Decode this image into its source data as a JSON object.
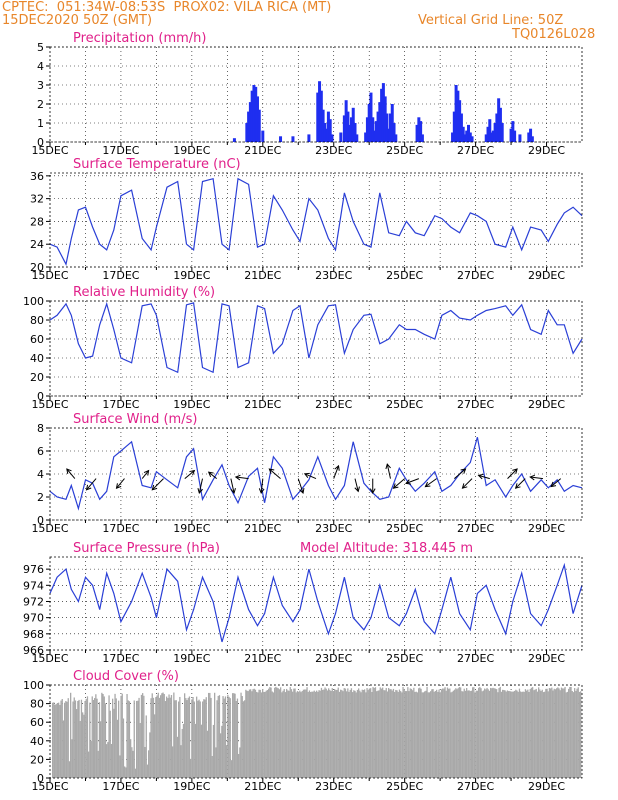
{
  "header": {
    "line1_left": "CPTEC:  051:34W-08:53S  PROX02: VILA RICA (MT)",
    "line2_left": "15DEC2020 50Z (GMT)",
    "line2_right": "Vertical Grid Line: 50Z",
    "line3_right": "TQ0126L028"
  },
  "colors": {
    "line": "#2a3fd6",
    "bar": "#1f2ef0",
    "cloud": "#a9a9a9",
    "title": "#e0208a",
    "header": "#e8862a"
  },
  "chart_data": [
    {
      "type": "bar",
      "title": "Precipitation (mm/h)",
      "xlabel": "",
      "ylabel": "",
      "ylim": [
        0,
        5
      ],
      "yticks": [
        0,
        1,
        2,
        3,
        4,
        5
      ],
      "x_tick_labels": [
        "15DEC",
        "17DEC",
        "19DEC",
        "21DEC",
        "23DEC",
        "25DEC",
        "27DEC",
        "29DEC"
      ],
      "x_range_days": [
        0,
        15
      ],
      "series": [
        {
          "day_offset": [
            5.2,
            5.55,
            5.6,
            5.65,
            5.7,
            5.75,
            5.8,
            5.85,
            5.9,
            6.0,
            6.5,
            6.85,
            7.3,
            7.55,
            7.6,
            7.65,
            7.7,
            7.75,
            7.8,
            7.85,
            7.9,
            7.95,
            8.2,
            8.3,
            8.35,
            8.4,
            8.45,
            8.5,
            8.55,
            8.6,
            8.65,
            8.9,
            8.95,
            9.0,
            9.05,
            9.1,
            9.15,
            9.2,
            9.25,
            9.3,
            9.35,
            9.4,
            9.45,
            9.5,
            9.55,
            9.6,
            9.65,
            9.7,
            9.75,
            10.35,
            10.4,
            10.45,
            10.5,
            11.35,
            11.4,
            11.45,
            11.5,
            11.55,
            11.6,
            11.65,
            11.7,
            11.75,
            11.8,
            11.85,
            11.9,
            12.3,
            12.35,
            12.4,
            12.45,
            12.5,
            12.55,
            12.6,
            12.65,
            12.7,
            12.75,
            13.0,
            13.05,
            13.1,
            13.25,
            13.5,
            13.55,
            13.6
          ],
          "values": [
            0.2,
            1.0,
            1.6,
            2.1,
            2.7,
            3.0,
            2.9,
            2.4,
            1.7,
            0.6,
            0.3,
            0.3,
            0.4,
            2.6,
            3.2,
            2.7,
            1.7,
            1.0,
            0.7,
            1.6,
            1.2,
            0.4,
            0.5,
            1.4,
            2.2,
            1.6,
            0.9,
            1.3,
            1.8,
            1.0,
            0.4,
            0.5,
            1.3,
            2.0,
            2.6,
            1.3,
            0.6,
            1.1,
            1.6,
            2.1,
            2.8,
            3.1,
            2.4,
            1.5,
            0.7,
            1.5,
            2.0,
            1.0,
            0.4,
            0.9,
            1.3,
            1.1,
            0.4,
            0.5,
            1.6,
            3.0,
            2.7,
            2.2,
            1.5,
            0.8,
            0.4,
            0.6,
            0.9,
            0.5,
            0.3,
            0.4,
            0.8,
            1.2,
            0.5,
            0.6,
            1.0,
            1.5,
            2.3,
            1.8,
            1.0,
            0.7,
            1.1,
            0.6,
            0.4,
            0.5,
            0.7,
            0.3
          ]
        }
      ]
    },
    {
      "type": "line",
      "title": "Surface Temperature (nC)",
      "ylim": [
        20,
        36.5
      ],
      "yticks": [
        20,
        24,
        28,
        32,
        36
      ],
      "x_tick_labels": [
        "15DEC",
        "17DEC",
        "19DEC",
        "21DEC",
        "23DEC",
        "25DEC",
        "27DEC",
        "29DEC"
      ],
      "x_range_days": [
        0,
        15
      ],
      "series": [
        {
          "x": [
            0,
            0.2,
            0.45,
            0.6,
            0.8,
            1.0,
            1.2,
            1.4,
            1.6,
            1.8,
            2.0,
            2.3,
            2.6,
            2.85,
            3.0,
            3.3,
            3.6,
            3.85,
            4.05,
            4.3,
            4.6,
            4.85,
            5.05,
            5.3,
            5.6,
            5.85,
            6.05,
            6.3,
            6.55,
            6.85,
            7.05,
            7.3,
            7.55,
            7.85,
            8.05,
            8.3,
            8.55,
            8.85,
            9.05,
            9.3,
            9.55,
            9.85,
            10.05,
            10.3,
            10.55,
            10.85,
            11.05,
            11.3,
            11.55,
            11.85,
            12.05,
            12.3,
            12.55,
            12.85,
            13.05,
            13.3,
            13.55,
            13.85,
            14.05,
            14.3,
            14.5,
            14.75,
            15.0
          ],
          "y": [
            24,
            23.5,
            20.5,
            25,
            30,
            30.5,
            27,
            24,
            23,
            26.5,
            32.5,
            33.5,
            25,
            23,
            27,
            34,
            35,
            24,
            23,
            35,
            35.5,
            24,
            23,
            35.5,
            34.5,
            23.5,
            24,
            32.5,
            30,
            26.5,
            24.5,
            32,
            30,
            25,
            23,
            33,
            28,
            24,
            23.5,
            33,
            26,
            25.5,
            28,
            26,
            25.5,
            29,
            28.5,
            27,
            26,
            29.5,
            29,
            28,
            24,
            23.5,
            27,
            23,
            27,
            26.5,
            24.5,
            27.5,
            29.5,
            30.5,
            29
          ]
        }
      ]
    },
    {
      "type": "line",
      "title": "Relative Humidity (%)",
      "ylim": [
        0,
        100
      ],
      "yticks": [
        0,
        20,
        40,
        60,
        80,
        100
      ],
      "x_tick_labels": [
        "15DEC",
        "17DEC",
        "19DEC",
        "21DEC",
        "23DEC",
        "25DEC",
        "27DEC",
        "29DEC"
      ],
      "x_range_days": [
        0,
        15
      ],
      "series": [
        {
          "x": [
            0,
            0.2,
            0.45,
            0.6,
            0.8,
            1.0,
            1.2,
            1.4,
            1.6,
            1.8,
            2.0,
            2.3,
            2.6,
            2.85,
            3.0,
            3.3,
            3.6,
            3.85,
            4.05,
            4.3,
            4.6,
            4.85,
            5.05,
            5.3,
            5.6,
            5.85,
            6.05,
            6.3,
            6.55,
            6.85,
            7.05,
            7.3,
            7.55,
            7.85,
            8.05,
            8.3,
            8.55,
            8.85,
            9.05,
            9.3,
            9.55,
            9.85,
            10.05,
            10.3,
            10.55,
            10.85,
            11.05,
            11.3,
            11.55,
            11.85,
            12.05,
            12.3,
            12.55,
            12.85,
            13.05,
            13.3,
            13.55,
            13.85,
            14.05,
            14.3,
            14.5,
            14.75,
            15.0
          ],
          "y": [
            80,
            85,
            97,
            85,
            55,
            40,
            42,
            75,
            97,
            70,
            40,
            35,
            95,
            97,
            85,
            30,
            25,
            96,
            98,
            30,
            25,
            97,
            95,
            30,
            35,
            95,
            92,
            45,
            55,
            90,
            95,
            40,
            75,
            95,
            96,
            45,
            70,
            85,
            86,
            55,
            60,
            75,
            70,
            70,
            65,
            60,
            85,
            90,
            82,
            80,
            85,
            90,
            92,
            95,
            85,
            96,
            70,
            65,
            90,
            75,
            75,
            45,
            60
          ]
        }
      ]
    },
    {
      "type": "line",
      "title": "Surface Wind (m/s)",
      "ylim": [
        0,
        8
      ],
      "yticks": [
        0,
        2,
        4,
        6,
        8
      ],
      "x_tick_labels": [
        "15DEC",
        "17DEC",
        "19DEC",
        "21DEC",
        "23DEC",
        "25DEC",
        "27DEC",
        "29DEC"
      ],
      "x_range_days": [
        0,
        15
      ],
      "series": [
        {
          "x": [
            0,
            0.2,
            0.45,
            0.6,
            0.8,
            1.0,
            1.2,
            1.4,
            1.6,
            1.8,
            2.0,
            2.3,
            2.6,
            2.85,
            3.0,
            3.3,
            3.6,
            3.85,
            4.05,
            4.3,
            4.6,
            4.85,
            5.05,
            5.3,
            5.6,
            5.85,
            6.05,
            6.3,
            6.55,
            6.85,
            7.05,
            7.3,
            7.55,
            7.85,
            8.05,
            8.3,
            8.55,
            8.85,
            9.05,
            9.3,
            9.55,
            9.85,
            10.05,
            10.3,
            10.55,
            10.85,
            11.05,
            11.3,
            11.55,
            11.85,
            12.05,
            12.3,
            12.55,
            12.85,
            13.05,
            13.3,
            13.55,
            13.85,
            14.05,
            14.3,
            14.5,
            14.75,
            15.0
          ],
          "y": [
            2.5,
            2.0,
            1.8,
            3.0,
            1.0,
            3.5,
            3.2,
            1.8,
            2.5,
            5.5,
            6.0,
            6.8,
            3.0,
            2.8,
            4.2,
            3.5,
            2.8,
            5.5,
            6.2,
            1.8,
            3.5,
            4.8,
            3.0,
            1.5,
            3.8,
            4.5,
            1.5,
            5.5,
            4.5,
            1.8,
            2.5,
            3.5,
            5.5,
            3.0,
            1.8,
            3.0,
            6.8,
            3.2,
            2.5,
            1.8,
            2.0,
            4.5,
            3.5,
            2.5,
            3.2,
            4.2,
            2.5,
            3.0,
            4.0,
            5.0,
            7.2,
            3.0,
            3.5,
            2.0,
            3.0,
            4.0,
            2.5,
            3.5,
            2.8,
            3.5,
            2.5,
            3.0,
            2.8
          ]
        }
      ],
      "arrows": [
        {
          "d": 0.7,
          "u": -0.5,
          "v": 0.6
        },
        {
          "d": 1.3,
          "u": -0.6,
          "v": -0.7
        },
        {
          "d": 2.1,
          "u": -0.5,
          "v": -0.6
        },
        {
          "d": 2.6,
          "u": 0.4,
          "v": 0.5
        },
        {
          "d": 3.2,
          "u": -0.7,
          "v": -0.7
        },
        {
          "d": 3.8,
          "u": 0.6,
          "v": 0.5
        },
        {
          "d": 4.3,
          "u": -0.2,
          "v": -0.9
        },
        {
          "d": 4.7,
          "u": -0.5,
          "v": 0.4
        },
        {
          "d": 5.1,
          "u": 0.2,
          "v": -0.9
        },
        {
          "d": 5.6,
          "u": -0.8,
          "v": 0.1
        },
        {
          "d": 6.0,
          "u": -0.1,
          "v": -0.9
        },
        {
          "d": 6.5,
          "u": -0.7,
          "v": 0.6
        },
        {
          "d": 7.0,
          "u": 0.3,
          "v": -0.9
        },
        {
          "d": 7.5,
          "u": -0.7,
          "v": 0.3
        },
        {
          "d": 8.0,
          "u": 0.3,
          "v": 0.8
        },
        {
          "d": 8.6,
          "u": 0.2,
          "v": -0.8
        },
        {
          "d": 9.1,
          "u": 0.0,
          "v": -0.9
        },
        {
          "d": 9.6,
          "u": -0.2,
          "v": 0.9
        },
        {
          "d": 10.0,
          "u": -0.7,
          "v": -0.6
        },
        {
          "d": 10.4,
          "u": -0.8,
          "v": -0.3
        },
        {
          "d": 10.9,
          "u": -0.7,
          "v": -0.5
        },
        {
          "d": 11.4,
          "u": 0.7,
          "v": 0.6
        },
        {
          "d": 11.9,
          "u": -0.6,
          "v": -0.6
        },
        {
          "d": 12.4,
          "u": -0.7,
          "v": 0.2
        },
        {
          "d": 12.9,
          "u": 0.6,
          "v": 0.6
        },
        {
          "d": 13.4,
          "u": -0.6,
          "v": -0.6
        },
        {
          "d": 13.9,
          "u": -0.8,
          "v": 0.1
        },
        {
          "d": 14.4,
          "u": -0.6,
          "v": -0.5
        }
      ]
    },
    {
      "type": "line",
      "title": "Surface Pressure (hPa)",
      "annotation": "Model Altitude: 318.445  m",
      "ylim": [
        966,
        977.5
      ],
      "yticks": [
        966,
        968,
        970,
        972,
        974,
        976
      ],
      "x_tick_labels": [
        "15DEC",
        "17DEC",
        "19DEC",
        "21DEC",
        "23DEC",
        "25DEC",
        "27DEC",
        "29DEC"
      ],
      "x_range_days": [
        0,
        15
      ],
      "series": [
        {
          "x": [
            0,
            0.2,
            0.45,
            0.6,
            0.8,
            1.0,
            1.2,
            1.4,
            1.6,
            1.8,
            2.0,
            2.3,
            2.6,
            2.85,
            3.0,
            3.3,
            3.6,
            3.85,
            4.05,
            4.3,
            4.6,
            4.85,
            5.05,
            5.3,
            5.6,
            5.85,
            6.05,
            6.3,
            6.55,
            6.85,
            7.05,
            7.3,
            7.55,
            7.85,
            8.05,
            8.3,
            8.55,
            8.85,
            9.05,
            9.3,
            9.55,
            9.85,
            10.05,
            10.3,
            10.55,
            10.85,
            11.05,
            11.3,
            11.55,
            11.85,
            12.05,
            12.3,
            12.55,
            12.85,
            13.05,
            13.3,
            13.55,
            13.85,
            14.05,
            14.3,
            14.5,
            14.75,
            15.0
          ],
          "y": [
            973,
            975,
            976,
            973.5,
            972,
            975,
            974,
            971,
            975.5,
            973,
            969.5,
            972,
            975.5,
            972.5,
            970,
            976,
            974.5,
            968.5,
            971,
            975,
            972,
            967,
            970,
            975,
            971,
            969,
            970.5,
            975,
            971.5,
            969.5,
            971,
            976,
            972,
            968,
            970.5,
            975,
            970,
            968.5,
            970,
            974,
            970,
            969,
            970.5,
            973.5,
            969.5,
            968,
            971,
            975,
            970.5,
            968.5,
            973,
            974,
            971,
            968,
            972,
            975.5,
            970.5,
            969,
            971,
            974,
            976.5,
            970.5,
            974
          ]
        }
      ]
    },
    {
      "type": "bar",
      "title": "Cloud Cover (%)",
      "ylim": [
        0,
        100
      ],
      "yticks": [
        0,
        20,
        40,
        60,
        80,
        100
      ],
      "x_tick_labels": [
        "15DEC",
        "17DEC",
        "19DEC",
        "21DEC",
        "23DEC",
        "25DEC",
        "27DEC",
        "29DEC"
      ],
      "x_range_days": [
        0,
        15
      ]
    }
  ]
}
